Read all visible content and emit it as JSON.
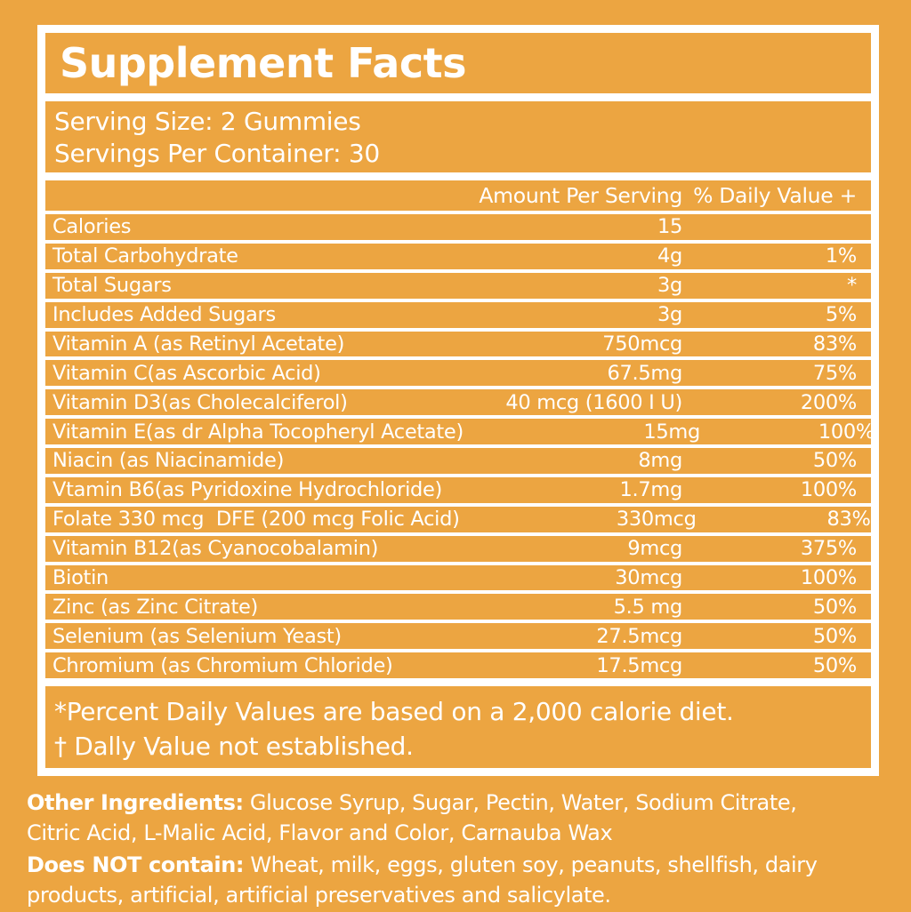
{
  "colors": {
    "background": "#ECA541",
    "divider": "#FFFFFF",
    "text": "#FFFFFF"
  },
  "panel": {
    "title": "Supplement Facts",
    "serving_size": "Serving Size: 2 Gummies",
    "servings_per_container": "Servings Per Container: 30",
    "footnotes": [
      "*Percent Daily Values are based on a 2,000 calorie diet.",
      "† Dally Value not established."
    ]
  },
  "table": {
    "headers": {
      "amount": "Amount Per Serving",
      "percent": "% Daily Value +"
    },
    "rows": [
      {
        "name": "Calories",
        "amount": "15",
        "percent": ""
      },
      {
        "name": "Total Carbohydrate",
        "amount": "4g",
        "percent": "1%"
      },
      {
        "name": "Total Sugars",
        "amount": "3g",
        "percent": "*"
      },
      {
        "name": "Includes Added Sugars",
        "amount": "3g",
        "percent": "5%"
      },
      {
        "name": "Vitamin A (as Retinyl Acetate)",
        "amount": "750mcg",
        "percent": "83%"
      },
      {
        "name": "Vitamin C(as Ascorbic Acid)",
        "amount": "67.5mg",
        "percent": "75%"
      },
      {
        "name": "Vitamin D3(as Cholecalciferol)",
        "amount": "40 mcg (1600 I U)",
        "percent": "200%"
      },
      {
        "name": "Vitamin E(as dr Alpha Tocopheryl Acetate)",
        "amount": "15mg",
        "percent": "100%"
      },
      {
        "name": "Niacin (as Niacinamide)",
        "amount": "8mg",
        "percent": "50%"
      },
      {
        "name": "Vtamin B6(as Pyridoxine Hydrochloride)",
        "amount": "1.7mg",
        "percent": "100%"
      },
      {
        "name": "Folate 330 mcg  DFE (200 mcg Folic Acid)",
        "amount": "330mcg",
        "percent": "83%"
      },
      {
        "name": "Vitamin B12(as Cyanocobalamin)",
        "amount": "9mcg",
        "percent": "375%"
      },
      {
        "name": "Biotin",
        "amount": "30mcg",
        "percent": "100%"
      },
      {
        "name": "Zinc (as Zinc Citrate)",
        "amount": "5.5 mg",
        "percent": "50%"
      },
      {
        "name": "Selenium (as Selenium Yeast)",
        "amount": "27.5mcg",
        "percent": "50%"
      },
      {
        "name": "Chromium (as Chromium Chloride)",
        "amount": "17.5mcg",
        "percent": "50%"
      }
    ]
  },
  "ingredients": {
    "other": {
      "lead": "Other Ingredients:",
      "line1_rest": " Glucose Syrup, Sugar, Pectin, Water, Sodium Citrate,",
      "line2": "Citric Acid, L-Malic Acid, Flavor and Color, Carnauba Wax"
    },
    "not_contain": {
      "lead": "Does NOT contain:",
      "line1_rest": " Wheat, milk, eggs, gluten soy, peanuts, shellfish, dairy",
      "line2": "products, artificial, artificial preservatives and salicylate."
    }
  }
}
